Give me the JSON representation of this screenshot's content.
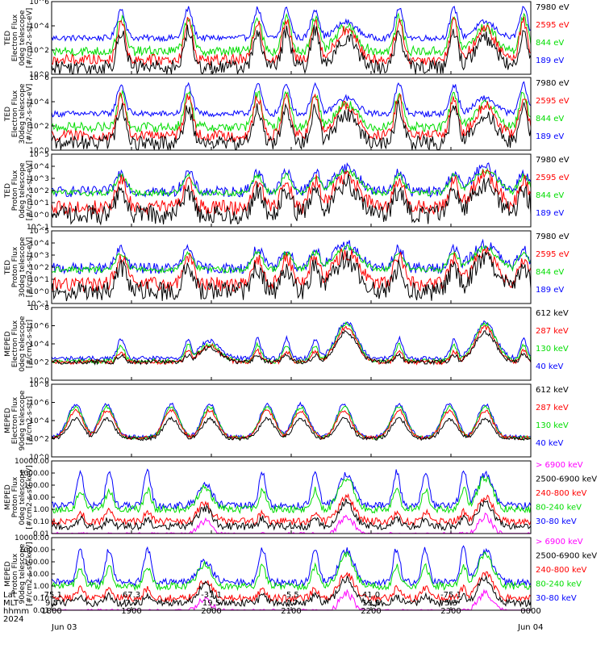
{
  "colors": {
    "black": "#000000",
    "red": "#ff0000",
    "green": "#00dd00",
    "blue": "#0000ff",
    "magenta": "#ff00ff"
  },
  "axis": {
    "ticks": [
      {
        "lat": "-75.1",
        "mlt": "9.5",
        "hhmm": "1800"
      },
      {
        "lat": "67.3",
        "mlt": "7.7",
        "hhmm": "1900"
      },
      {
        "lat": "-31.1",
        "mlt": "19.5",
        "hhmm": "2000"
      },
      {
        "lat": "-5.5",
        "mlt": "7.7",
        "hhmm": "2100"
      },
      {
        "lat": "41.0",
        "mlt": "19.9",
        "hhmm": "2200"
      },
      {
        "lat": "-75.1",
        "mlt": "5.3",
        "hhmm": "2300"
      },
      {
        "lat": "",
        "mlt": "",
        "hhmm": "0000"
      }
    ],
    "row_labels": [
      "Lat",
      "MLT",
      "hhmm",
      "2024"
    ],
    "date_start": "Jun 03",
    "date_end": "Jun 04"
  },
  "chart_data": [
    {
      "type": "line",
      "ylabel": [
        "TED",
        "Electron Flux",
        "0deg telescope",
        "[#/cm2-s-str-eV]"
      ],
      "yscale": "log",
      "ylim": [
        1,
        1000000
      ],
      "ytick_labels": [
        "10^0",
        "10^2",
        "10^4",
        "10^6"
      ],
      "series": [
        {
          "name": "7980 eV",
          "color": "black"
        },
        {
          "name": "2595 eV",
          "color": "red"
        },
        {
          "name": "844 eV",
          "color": "green"
        },
        {
          "name": "189 eV",
          "color": "blue"
        }
      ]
    },
    {
      "type": "line",
      "ylabel": [
        "TED",
        "Electron Flux",
        "30deg telescope",
        "[#/cm2-s-str-eV]"
      ],
      "yscale": "log",
      "ylim": [
        1,
        1000000
      ],
      "ytick_labels": [
        "10^0",
        "10^2",
        "10^4",
        "10^6"
      ],
      "series": [
        {
          "name": "7980 eV",
          "color": "black"
        },
        {
          "name": "2595 eV",
          "color": "red"
        },
        {
          "name": "844 eV",
          "color": "green"
        },
        {
          "name": "189 eV",
          "color": "blue"
        }
      ]
    },
    {
      "type": "line",
      "ylabel": [
        "TED",
        "Proton Flux",
        "0deg telescope",
        "[#/cm2-s-str-eV]"
      ],
      "yscale": "log",
      "ylim": [
        0.1,
        100000
      ],
      "ytick_labels": [
        "10^-1",
        "10^0",
        "10^1",
        "10^2",
        "10^3",
        "10^4",
        "10^5"
      ],
      "series": [
        {
          "name": "7980 eV",
          "color": "black"
        },
        {
          "name": "2595 eV",
          "color": "red"
        },
        {
          "name": "844 eV",
          "color": "green"
        },
        {
          "name": "189 eV",
          "color": "blue"
        }
      ]
    },
    {
      "type": "line",
      "ylabel": [
        "TED",
        "Proton Flux",
        "30deg telescope",
        "[#/cm2-s-str-eV]"
      ],
      "yscale": "log",
      "ylim": [
        0.1,
        100000
      ],
      "ytick_labels": [
        "10^-1",
        "10^0",
        "10^1",
        "10^2",
        "10^3",
        "10^4",
        "10^5"
      ],
      "series": [
        {
          "name": "7980 eV",
          "color": "black"
        },
        {
          "name": "2595 eV",
          "color": "red"
        },
        {
          "name": "844 eV",
          "color": "green"
        },
        {
          "name": "189 eV",
          "color": "blue"
        }
      ]
    },
    {
      "type": "line",
      "ylabel": [
        "MEPED",
        "Electron Flux",
        "0deg telescope",
        "[#/cm2-s-str]"
      ],
      "yscale": "log",
      "ylim": [
        1,
        100000000
      ],
      "ytick_labels": [
        "10^0",
        "10^2",
        "10^4",
        "10^6",
        "10^8"
      ],
      "series": [
        {
          "name": "612 keV",
          "color": "black"
        },
        {
          "name": "287 keV",
          "color": "red"
        },
        {
          "name": "130 keV",
          "color": "green"
        },
        {
          "name": "40 keV",
          "color": "blue"
        }
      ]
    },
    {
      "type": "line",
      "ylabel": [
        "MEPED",
        "Electron Flux",
        "90deg telescope",
        "[#/cm2-s-str]"
      ],
      "yscale": "log",
      "ylim": [
        1,
        100000000
      ],
      "ytick_labels": [
        "10^0",
        "10^2",
        "10^4",
        "10^6",
        "10^8"
      ],
      "series": [
        {
          "name": "612 keV",
          "color": "black"
        },
        {
          "name": "287 keV",
          "color": "red"
        },
        {
          "name": "130 keV",
          "color": "green"
        },
        {
          "name": "40 keV",
          "color": "blue"
        }
      ]
    },
    {
      "type": "line",
      "ylabel": [
        "MEPED",
        "Proton Flux",
        "0deg telescope",
        "[#/cm2-s-str-keV]"
      ],
      "yscale": "log",
      "ylim": [
        0.01,
        10000
      ],
      "ytick_labels": [
        "0.01",
        "0.10",
        "1.00",
        "10.00",
        "100.00",
        "1000.00",
        "10000.00"
      ],
      "series": [
        {
          "name": "> 6900 keV",
          "color": "magenta"
        },
        {
          "name": "2500-6900 keV",
          "color": "black"
        },
        {
          "name": "240-800 keV",
          "color": "red"
        },
        {
          "name": "80-240 keV",
          "color": "green"
        },
        {
          "name": "30-80 keV",
          "color": "blue"
        }
      ]
    },
    {
      "type": "line",
      "ylabel": [
        "MEPED",
        "Proton Flux",
        "90deg telescope",
        "[#/cm2-s-str-keV]"
      ],
      "yscale": "log",
      "ylim": [
        0.01,
        10000
      ],
      "ytick_labels": [
        "0.01",
        "0.10",
        "1.00",
        "10.00",
        "100.00",
        "1000.00",
        "10000.00"
      ],
      "series": [
        {
          "name": "> 6900 keV",
          "color": "magenta"
        },
        {
          "name": "2500-6900 keV",
          "color": "black"
        },
        {
          "name": "240-800 keV",
          "color": "red"
        },
        {
          "name": "80-240 keV",
          "color": "green"
        },
        {
          "name": "30-80 keV",
          "color": "blue"
        }
      ]
    }
  ]
}
